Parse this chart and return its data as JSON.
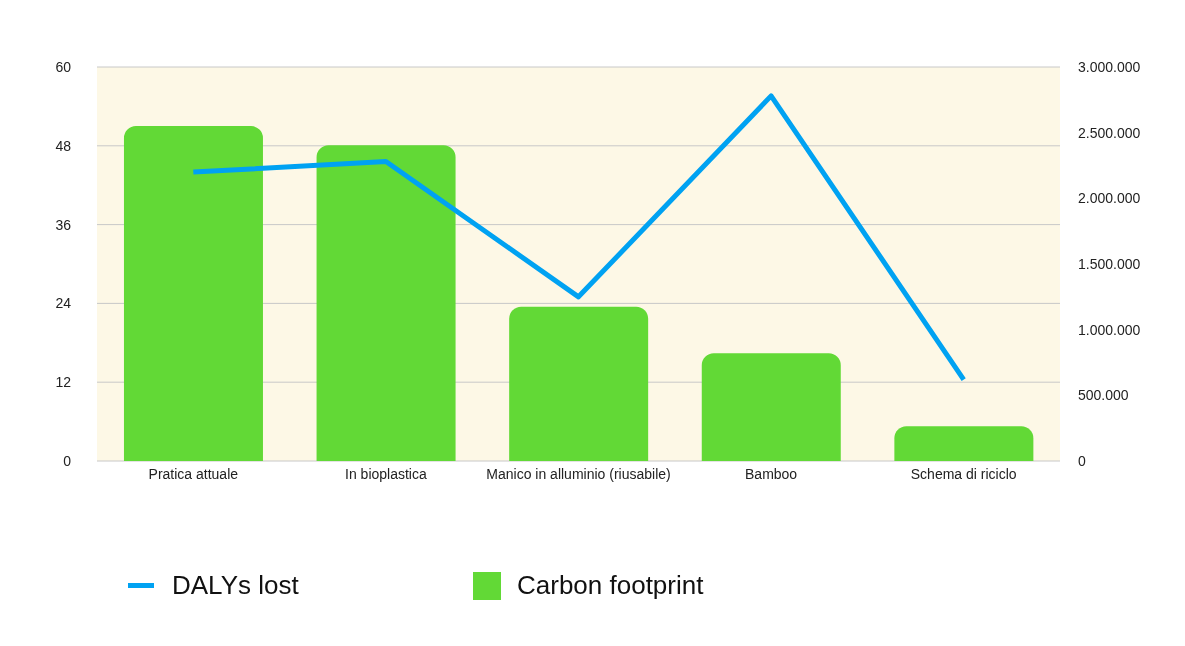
{
  "chart_data": {
    "type": "bar",
    "categories": [
      "Pratica attuale",
      "In bioplastica",
      "Manico in alluminio (riusabile)",
      "Bamboo",
      "Schema di riciclo"
    ],
    "series": [
      {
        "name": "DALYs lost",
        "type": "line",
        "axis": "y2",
        "color": "#00a2f2",
        "values": [
          2200000,
          2280000,
          1250000,
          2780000,
          620000
        ]
      },
      {
        "name": "Carbon footprint",
        "color": "#62d936",
        "values": [
          51,
          48.1,
          23.5,
          16.4,
          5.3
        ]
      }
    ],
    "ylim": [
      0,
      60
    ],
    "yticks": [
      0,
      12,
      24,
      36,
      48,
      60
    ],
    "y2lim": [
      0,
      3000000
    ],
    "y2ticks": [
      {
        "value": 0,
        "label": "0"
      },
      {
        "value": 500000,
        "label": "500.000"
      },
      {
        "value": 1000000,
        "label": "1.000.000"
      },
      {
        "value": 1500000,
        "label": "1.500.000"
      },
      {
        "value": 2000000,
        "label": "2.000.000"
      },
      {
        "value": 2500000,
        "label": "2.500.000"
      },
      {
        "value": 3000000,
        "label": "3.000.000"
      }
    ],
    "grid": "y",
    "legend": "bottom"
  }
}
